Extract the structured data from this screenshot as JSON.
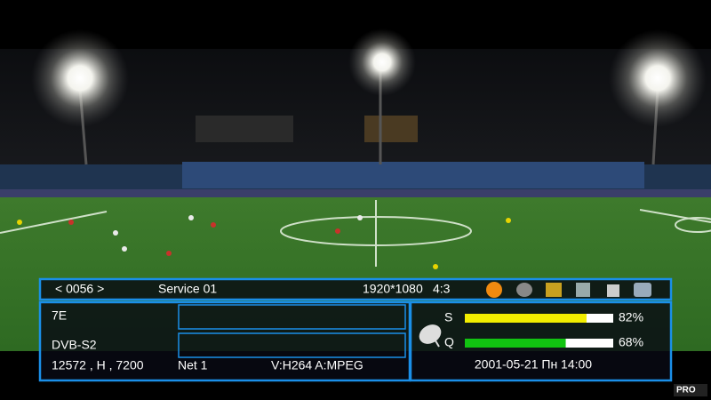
{
  "top_bar": {
    "channel_number": "< 0056 >",
    "service_name": "Service 01",
    "resolution": "1920*1080",
    "aspect": "4:3"
  },
  "info": {
    "satellite": "7E",
    "system": "DVB-S2",
    "transponder": "12572 , H , 7200",
    "network": "Net 1",
    "codecs": "V:H264 A:MPEG"
  },
  "signals": [
    {
      "label": "S",
      "value": 82,
      "value_label": "82%",
      "color": "#f2ee00"
    },
    {
      "label": "Q",
      "value": 68,
      "value_label": "68%",
      "color": "#11c411"
    }
  ],
  "datetime": "2001-05-21 Пн 14:00",
  "watermark": "PRO"
}
